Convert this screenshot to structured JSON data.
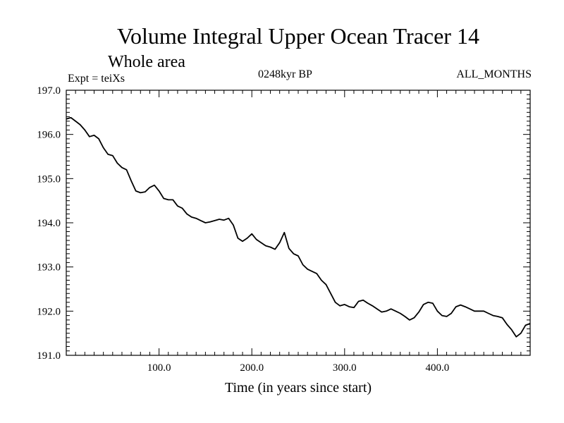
{
  "header": {
    "title": "Volume Integral Upper Ocean Tracer 14",
    "subtitle": "Whole area",
    "expt": "Expt = teiXs",
    "age": "0248kyr BP",
    "period": "ALL_MONTHS"
  },
  "chart_data": {
    "type": "line",
    "title": "Volume Integral Upper Ocean Tracer 14",
    "subtitle": "Whole area",
    "xlabel": "Time (in years since start)",
    "ylabel": "",
    "xlim": [
      0,
      500
    ],
    "ylim": [
      191.0,
      197.0
    ],
    "grid": false,
    "xticks": [
      100,
      200,
      300,
      400
    ],
    "xtick_labels": [
      "100.0",
      "200.0",
      "300.0",
      "400.0"
    ],
    "yticks": [
      191,
      192,
      193,
      194,
      195,
      196,
      197
    ],
    "ytick_labels": [
      "191.0",
      "192.0",
      "193.0",
      "194.0",
      "195.0",
      "196.0",
      "197.0"
    ],
    "series": [
      {
        "color": "#000000",
        "x": [
          0,
          5,
          10,
          15,
          20,
          25,
          30,
          35,
          40,
          45,
          50,
          55,
          60,
          65,
          70,
          75,
          80,
          85,
          90,
          95,
          100,
          105,
          110,
          115,
          120,
          125,
          130,
          135,
          140,
          145,
          150,
          155,
          160,
          165,
          170,
          175,
          180,
          185,
          190,
          195,
          200,
          205,
          210,
          215,
          220,
          225,
          230,
          235,
          240,
          245,
          250,
          255,
          260,
          265,
          270,
          275,
          280,
          285,
          290,
          295,
          300,
          305,
          310,
          315,
          320,
          325,
          330,
          335,
          340,
          345,
          350,
          355,
          360,
          365,
          370,
          375,
          380,
          385,
          390,
          395,
          400,
          405,
          410,
          415,
          420,
          425,
          430,
          435,
          440,
          445,
          450,
          455,
          460,
          465,
          470,
          475,
          480,
          485,
          490,
          495,
          500
        ],
        "y": [
          196.35,
          196.38,
          196.3,
          196.22,
          196.1,
          195.95,
          195.98,
          195.9,
          195.7,
          195.55,
          195.52,
          195.35,
          195.25,
          195.2,
          194.95,
          194.72,
          194.68,
          194.7,
          194.8,
          194.85,
          194.72,
          194.55,
          194.52,
          194.52,
          194.38,
          194.33,
          194.2,
          194.13,
          194.1,
          194.05,
          194.0,
          194.02,
          194.05,
          194.08,
          194.06,
          194.1,
          193.95,
          193.65,
          193.58,
          193.65,
          193.75,
          193.62,
          193.55,
          193.48,
          193.45,
          193.4,
          193.55,
          193.78,
          193.42,
          193.3,
          193.25,
          193.05,
          192.95,
          192.9,
          192.85,
          192.7,
          192.6,
          192.4,
          192.2,
          192.12,
          192.15,
          192.1,
          192.08,
          192.22,
          192.25,
          192.18,
          192.12,
          192.05,
          191.98,
          192.0,
          192.05,
          192.0,
          191.95,
          191.88,
          191.8,
          191.85,
          191.98,
          192.15,
          192.2,
          192.18,
          192.0,
          191.9,
          191.88,
          191.95,
          192.1,
          192.14,
          192.1,
          192.05,
          192.0,
          192.0,
          192.0,
          191.95,
          191.9,
          191.88,
          191.85,
          191.7,
          191.58,
          191.42,
          191.5,
          191.68,
          191.72
        ]
      }
    ]
  }
}
